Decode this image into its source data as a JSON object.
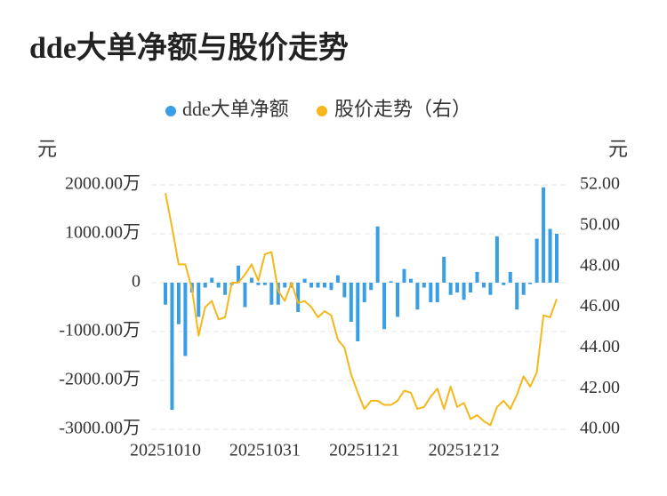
{
  "chart_data": {
    "type": "bar-line",
    "title": "dde大单净额与股价走势",
    "yaxis_label": "元",
    "y2axis_label": "元",
    "categories": [
      "20251010",
      null,
      null,
      null,
      null,
      null,
      null,
      null,
      null,
      null,
      null,
      null,
      null,
      null,
      null,
      "20251031",
      null,
      null,
      null,
      null,
      null,
      null,
      null,
      null,
      null,
      null,
      null,
      null,
      null,
      null,
      "20251121",
      null,
      null,
      null,
      null,
      null,
      null,
      null,
      null,
      null,
      null,
      null,
      null,
      null,
      null,
      "20251212",
      null,
      null,
      null,
      null,
      null,
      null,
      null,
      null,
      null,
      null,
      null,
      null,
      null,
      null
    ],
    "series": [
      {
        "name": "dde大单净额",
        "type": "bar",
        "color": "#3a9ee4",
        "values": [
          -450,
          -2600,
          -850,
          -1500,
          -200,
          -700,
          -100,
          100,
          -100,
          -250,
          -50,
          350,
          -500,
          100,
          -50,
          -50,
          -450,
          -450,
          -100,
          -100,
          -600,
          80,
          -100,
          -100,
          -100,
          -150,
          150,
          -300,
          -800,
          -1200,
          -400,
          -150,
          1150,
          -950,
          30,
          -700,
          280,
          80,
          -550,
          -100,
          -400,
          -400,
          530,
          -250,
          -200,
          -350,
          -200,
          220,
          -100,
          -250,
          950,
          -50,
          220,
          -550,
          -250,
          -30,
          900,
          1950,
          1100,
          1000
        ]
      },
      {
        "name": "股价走势（右）",
        "type": "line",
        "axis": "y2",
        "color": "#f5b71a",
        "values": [
          51.6,
          49.9,
          48.1,
          48.1,
          46.9,
          44.6,
          46.0,
          46.3,
          45.4,
          45.5,
          47.2,
          47.2,
          47.6,
          48.1,
          47.3,
          48.6,
          48.7,
          46.8,
          46.3,
          47.2,
          46.2,
          46.3,
          46.0,
          45.5,
          45.8,
          45.6,
          44.4,
          44.0,
          42.7,
          41.8,
          41.0,
          41.4,
          41.4,
          41.2,
          41.2,
          41.4,
          41.9,
          41.8,
          41.0,
          41.1,
          41.6,
          42.0,
          41.0,
          42.1,
          41.1,
          41.3,
          40.5,
          40.7,
          40.4,
          40.2,
          41.1,
          41.4,
          41.0,
          41.7,
          42.6,
          42.1,
          42.8,
          45.6,
          45.5,
          46.4
        ]
      }
    ],
    "ylim": [
      -3000,
      2000
    ],
    "yticks": [
      {
        "value": -3000,
        "label": "-3000.00万"
      },
      {
        "value": -2000,
        "label": "-2000.00万"
      },
      {
        "value": -1000,
        "label": "-1000.00万"
      },
      0,
      {
        "value": 1000,
        "label": "1000.00万"
      },
      {
        "value": 2000,
        "label": "2000.00万"
      }
    ],
    "y2lim": [
      40,
      52
    ],
    "y2ticks": [
      {
        "value": 40,
        "label": "40.00"
      },
      {
        "value": 42,
        "label": "42.00"
      },
      {
        "value": 44,
        "label": "44.00"
      },
      {
        "value": 46,
        "label": "46.00"
      },
      {
        "value": 48,
        "label": "48.00"
      },
      {
        "value": 50,
        "label": "50.00"
      },
      {
        "value": 52,
        "label": "52.00"
      }
    ],
    "grid": true
  }
}
